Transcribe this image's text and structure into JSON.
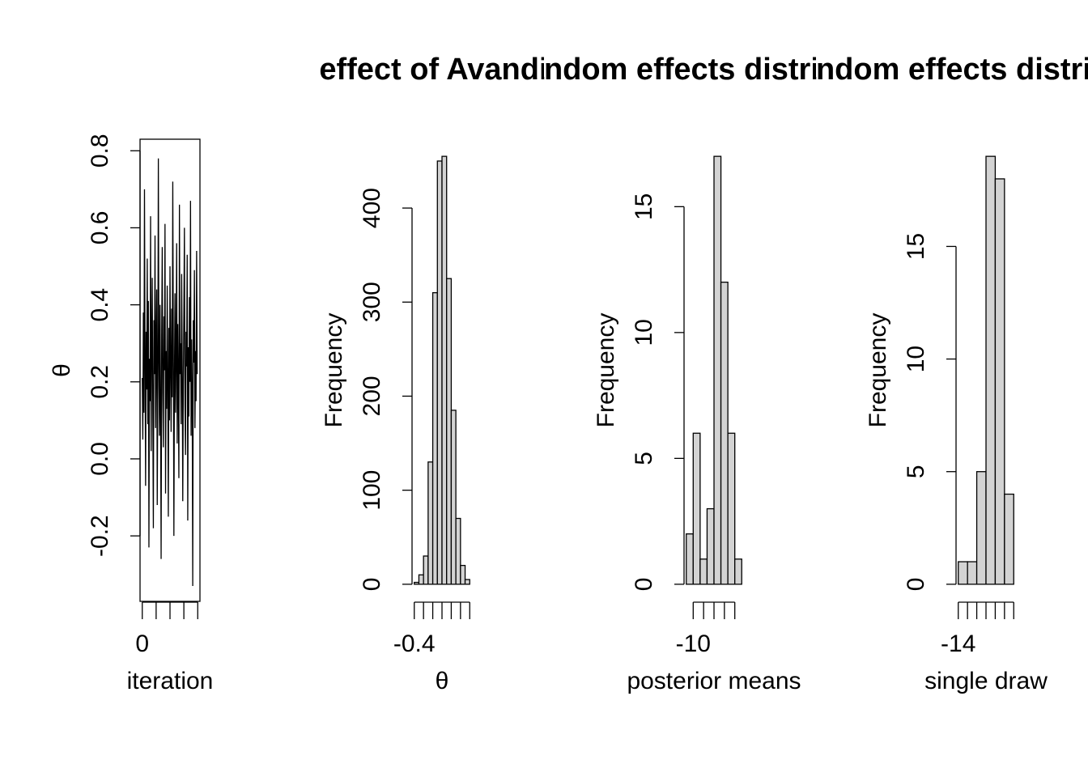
{
  "chart_data": [
    {
      "type": "line",
      "xlabel": "iteration",
      "ylabel": "θ",
      "color": "#000000",
      "box": true,
      "x": [
        0,
        20,
        40,
        60,
        80,
        100,
        120,
        140,
        160,
        180,
        200,
        220,
        240,
        260,
        280,
        300,
        320,
        340,
        360,
        380,
        400,
        420,
        440,
        460,
        480,
        500,
        520,
        540,
        560,
        580,
        600,
        620,
        640,
        660,
        680,
        700,
        720,
        740,
        760,
        780,
        800,
        820,
        840,
        860,
        880,
        900,
        920,
        940,
        960,
        980,
        1000,
        1020,
        1040,
        1060,
        1080,
        1100,
        1120,
        1140,
        1160,
        1180,
        1200,
        1220,
        1240,
        1260,
        1280,
        1300,
        1320,
        1340,
        1360,
        1380,
        1400,
        1420,
        1440,
        1460,
        1480,
        1500,
        1520,
        1540,
        1560,
        1580,
        1600,
        1620,
        1640,
        1660,
        1680,
        1700,
        1720,
        1740,
        1760,
        1780,
        1800,
        1820,
        1840,
        1860,
        1880,
        1900,
        1920,
        1940,
        1960,
        1980
      ],
      "values": [
        0.21,
        0.05,
        0.38,
        0.12,
        0.7,
        0.27,
        -0.07,
        0.33,
        0.18,
        0.52,
        0.09,
        0.41,
        -0.23,
        0.26,
        0.15,
        0.63,
        0.02,
        0.3,
        0.47,
        0.11,
        -0.18,
        0.36,
        0.22,
        0.58,
        0.08,
        0.29,
        0.44,
        -0.12,
        0.19,
        0.78,
        0.25,
        0.06,
        0.4,
        0.14,
        -0.26,
        0.32,
        0.55,
        0.17,
        0.03,
        0.37,
        0.23,
        0.61,
        -0.09,
        0.28,
        0.13,
        0.45,
        0.2,
        -0.15,
        0.34,
        0.1,
        0.5,
        0.24,
        0.07,
        0.39,
        0.16,
        0.72,
        0.31,
        -0.2,
        0.21,
        0.43,
        0.12,
        0.27,
        0.56,
        0.04,
        0.35,
        0.18,
        -0.05,
        0.66,
        0.22,
        0.3,
        0.09,
        0.48,
        0.26,
        -0.11,
        0.19,
        0.38,
        0.6,
        0.14,
        0.01,
        0.33,
        0.24,
        0.53,
        -0.16,
        0.29,
        0.11,
        0.42,
        0.2,
        0.67,
        0.06,
        0.31,
        0.17,
        -0.33,
        0.36,
        0.25,
        0.49,
        0.08,
        0.28,
        0.15,
        0.54,
        0.22
      ],
      "xlim": [
        -80,
        2080
      ],
      "xticks": [
        0,
        {
          "value": 500,
          "label": null
        },
        {
          "value": 1000,
          "label": null
        },
        {
          "value": 1500,
          "label": null
        },
        {
          "value": 2000,
          "label": null
        }
      ],
      "ylim": [
        -0.37,
        0.83
      ],
      "yticks": [
        -0.2,
        {
          "value": 0,
          "label": "0.0"
        },
        0.2,
        0.4,
        0.6,
        0.8
      ]
    },
    {
      "type": "histogram",
      "title": "effect of Avandia",
      "xlabel": "θ",
      "ylabel": "Frequency",
      "color": "#d3d3d3",
      "bins": [
        -0.4,
        -0.3,
        -0.2,
        -0.1,
        0,
        0.1,
        0.2,
        0.3,
        0.4,
        0.5,
        0.6,
        0.7,
        0.8
      ],
      "values": [
        2,
        10,
        30,
        130,
        310,
        450,
        455,
        325,
        185,
        70,
        20,
        5
      ],
      "xlim": [
        -0.448,
        0.848
      ],
      "xticks": [
        -0.4,
        {
          "value": -0.2,
          "label": null
        },
        {
          "value": 0,
          "label": null
        },
        {
          "value": 0.2,
          "label": null
        },
        {
          "value": 0.4,
          "label": null
        },
        {
          "value": 0.6,
          "label": null
        },
        {
          "value": 0.8,
          "label": null
        }
      ],
      "ylim": [
        -18.2,
        473.2
      ],
      "yticks": [
        0,
        100,
        200,
        300,
        400
      ]
    },
    {
      "type": "histogram",
      "title": "random effects distribution",
      "xlabel": "posterior means",
      "ylabel": "Frequency",
      "color": "#d3d3d3",
      "bins": [
        -10.2,
        -10,
        -9.8,
        -9.6,
        -9.4,
        -9.2,
        -9,
        -8.8,
        -8.6
      ],
      "values": [
        2,
        6,
        1,
        3,
        17,
        12,
        6,
        1
      ],
      "xlim": [
        -10.264,
        -8.536
      ],
      "xticks": [
        -10,
        {
          "value": -9.7,
          "label": null
        },
        {
          "value": -9.4,
          "label": null
        },
        {
          "value": -9.1,
          "label": null
        },
        {
          "value": -8.8,
          "label": null
        }
      ],
      "ylim": [
        -0.68,
        17.68
      ],
      "yticks": [
        0,
        5,
        10,
        15
      ]
    },
    {
      "type": "histogram",
      "title": "random effects distribution",
      "xlabel": "single draw",
      "ylabel": "Frequency",
      "color": "#d3d3d3",
      "bins": [
        -14,
        -13.5,
        -13,
        -12.5,
        -12,
        -11.5,
        -11
      ],
      "values": [
        1,
        1,
        5,
        19,
        18,
        4
      ],
      "xlim": [
        -14.12,
        -10.88
      ],
      "xticks": [
        -14,
        {
          "value": -13.5,
          "label": null
        },
        {
          "value": -13,
          "label": null
        },
        {
          "value": -12.5,
          "label": null
        },
        {
          "value": -12,
          "label": null
        },
        {
          "value": -11.5,
          "label": null
        },
        {
          "value": -11,
          "label": null
        }
      ],
      "ylim": [
        -0.76,
        19.76
      ],
      "yticks": [
        0,
        5,
        10,
        15
      ]
    }
  ]
}
